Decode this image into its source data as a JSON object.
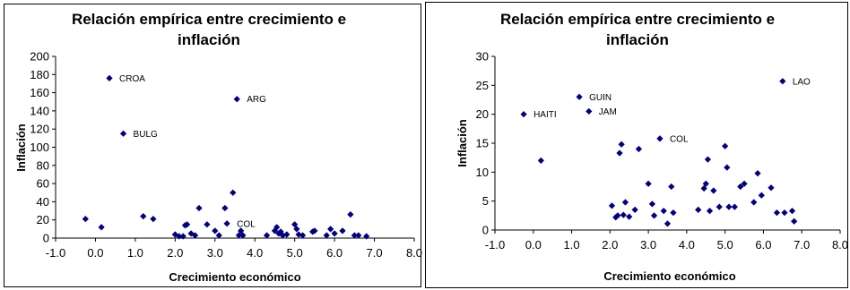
{
  "chart_data": [
    {
      "type": "scatter",
      "title_line1": "Relación empírica entre crecimiento e",
      "title_line2": "inflación",
      "xlabel": "Crecimiento económico",
      "ylabel": "Inflación",
      "xlim": [
        -1,
        8
      ],
      "ylim": [
        0,
        200
      ],
      "x_ticks": [
        "-1.0",
        "0.0",
        "1.0",
        "2.0",
        "3.0",
        "4.0",
        "5.0",
        "6.0",
        "7.0",
        "8.0"
      ],
      "y_ticks": [
        "0",
        "20",
        "40",
        "60",
        "80",
        "100",
        "120",
        "140",
        "160",
        "180",
        "200"
      ],
      "grid": false,
      "marker_color": "#000080",
      "points": [
        [
          -0.25,
          21
        ],
        [
          0.15,
          12
        ],
        [
          0.35,
          176
        ],
        [
          0.7,
          115
        ],
        [
          1.2,
          24
        ],
        [
          1.45,
          21
        ],
        [
          2.0,
          4
        ],
        [
          2.1,
          2
        ],
        [
          2.2,
          2
        ],
        [
          2.25,
          14
        ],
        [
          2.3,
          15
        ],
        [
          2.4,
          5
        ],
        [
          2.5,
          3
        ],
        [
          2.6,
          33
        ],
        [
          2.8,
          15
        ],
        [
          3.0,
          8
        ],
        [
          3.1,
          3
        ],
        [
          3.25,
          33
        ],
        [
          3.3,
          16
        ],
        [
          3.45,
          50
        ],
        [
          3.55,
          153
        ],
        [
          3.6,
          3
        ],
        [
          3.65,
          8
        ],
        [
          3.7,
          3
        ],
        [
          4.3,
          3
        ],
        [
          4.5,
          8
        ],
        [
          4.55,
          12
        ],
        [
          4.6,
          5
        ],
        [
          4.65,
          7
        ],
        [
          4.7,
          3
        ],
        [
          4.8,
          4
        ],
        [
          5.0,
          15
        ],
        [
          5.05,
          10
        ],
        [
          5.1,
          4
        ],
        [
          5.2,
          3
        ],
        [
          5.45,
          7
        ],
        [
          5.5,
          8
        ],
        [
          5.8,
          3
        ],
        [
          5.9,
          10
        ],
        [
          6.0,
          5
        ],
        [
          6.2,
          8
        ],
        [
          6.4,
          26
        ],
        [
          6.5,
          3
        ],
        [
          6.6,
          3
        ],
        [
          6.8,
          2
        ]
      ],
      "annotations": [
        {
          "text": "CROA",
          "x": 0.35,
          "y": 176
        },
        {
          "text": "BULG",
          "x": 0.7,
          "y": 115
        },
        {
          "text": "ARG",
          "x": 3.55,
          "y": 153
        },
        {
          "text": "COL",
          "x": 3.3,
          "y": 16
        }
      ]
    },
    {
      "type": "scatter",
      "title_line1": "Relación empírica entre crecimiento e",
      "title_line2": "inflación",
      "xlabel": "Crecimiento económico",
      "ylabel": "Inflación",
      "xlim": [
        -1,
        8
      ],
      "ylim": [
        0,
        30
      ],
      "x_ticks": [
        "-1.0",
        "0.0",
        "1.0",
        "2.0",
        "3.0",
        "4.0",
        "5.0",
        "6.0",
        "7.0",
        "8.0"
      ],
      "y_ticks": [
        "0",
        "5",
        "10",
        "15",
        "20",
        "25",
        "30"
      ],
      "grid": false,
      "marker_color": "#000080",
      "points": [
        [
          -0.25,
          20
        ],
        [
          0.2,
          12
        ],
        [
          1.2,
          23
        ],
        [
          1.45,
          20.5
        ],
        [
          2.05,
          4.2
        ],
        [
          2.15,
          2.2
        ],
        [
          2.2,
          2.5
        ],
        [
          2.25,
          13.3
        ],
        [
          2.3,
          14.8
        ],
        [
          2.35,
          2.6
        ],
        [
          2.4,
          4.8
        ],
        [
          2.5,
          2.3
        ],
        [
          2.65,
          3.5
        ],
        [
          2.75,
          14
        ],
        [
          3.0,
          8
        ],
        [
          3.1,
          4.5
        ],
        [
          3.15,
          2.5
        ],
        [
          3.3,
          15.8
        ],
        [
          3.4,
          3.3
        ],
        [
          3.6,
          7.5
        ],
        [
          3.65,
          3
        ],
        [
          3.5,
          1.1
        ],
        [
          4.3,
          3.5
        ],
        [
          4.45,
          7.2
        ],
        [
          4.5,
          8
        ],
        [
          4.55,
          12.2
        ],
        [
          4.6,
          3.3
        ],
        [
          4.7,
          6.8
        ],
        [
          4.85,
          4
        ],
        [
          5.0,
          14.5
        ],
        [
          5.05,
          10.8
        ],
        [
          5.1,
          4
        ],
        [
          5.25,
          4
        ],
        [
          5.4,
          7.5
        ],
        [
          5.5,
          8
        ],
        [
          5.75,
          4.8
        ],
        [
          5.85,
          9.8
        ],
        [
          5.95,
          6
        ],
        [
          6.2,
          7.3
        ],
        [
          6.35,
          3
        ],
        [
          6.5,
          25.7
        ],
        [
          6.55,
          3
        ],
        [
          6.75,
          3.3
        ],
        [
          6.8,
          1.5
        ]
      ],
      "annotations": [
        {
          "text": "HAITI",
          "x": -0.25,
          "y": 20
        },
        {
          "text": "GUIN",
          "x": 1.2,
          "y": 23
        },
        {
          "text": "JAM",
          "x": 1.45,
          "y": 20.5
        },
        {
          "text": "COL",
          "x": 3.3,
          "y": 15.8
        },
        {
          "text": "LAO",
          "x": 6.5,
          "y": 25.7
        }
      ]
    }
  ]
}
